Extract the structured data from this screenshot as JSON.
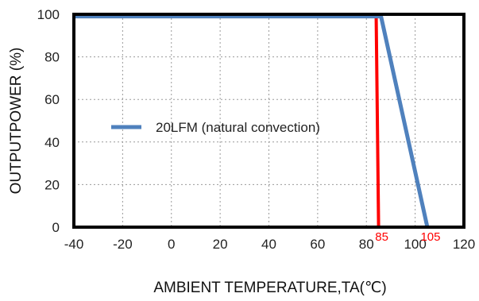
{
  "chart_data": {
    "type": "line",
    "title": "",
    "xlabel": "AMBIENT TEMPERATURE,TA(℃)",
    "ylabel": "OUTPUTPOWER (%)",
    "xlim": [
      -40,
      120
    ],
    "ylim": [
      0,
      100
    ],
    "x_ticks": [
      -40,
      -20,
      0,
      20,
      40,
      60,
      80,
      100,
      120
    ],
    "y_ticks": [
      0,
      20,
      40,
      60,
      80,
      100
    ],
    "grid": true,
    "legend_position": "middle-left",
    "series": [
      {
        "name": "20LFM (natural convection)",
        "color": "#4f81bd",
        "points": [
          {
            "x": -40,
            "y": 99
          },
          {
            "x": 86,
            "y": 99
          },
          {
            "x": 105,
            "y": 0
          }
        ]
      }
    ],
    "reference_lines": [
      {
        "label": "85",
        "color": "#ff0000",
        "points": [
          {
            "x": 84,
            "y": 100
          },
          {
            "x": 85,
            "y": 0
          }
        ]
      }
    ],
    "annotations": [
      {
        "text": "85",
        "x": 85,
        "color": "#ff0000"
      },
      {
        "text": "105",
        "x": 105,
        "color": "#ff0000"
      }
    ]
  }
}
